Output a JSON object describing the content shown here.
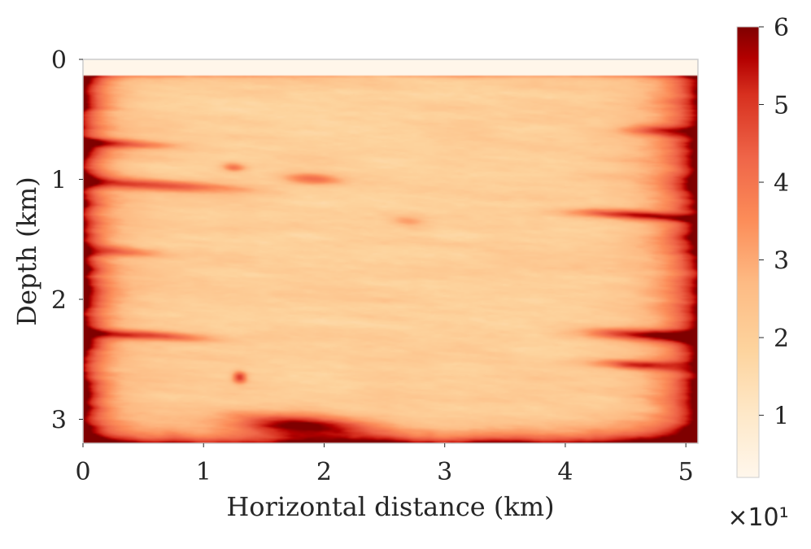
{
  "chart_data": {
    "type": "heatmap",
    "title": "",
    "xlabel": "Horizontal distance (km)",
    "ylabel": "Depth (km)",
    "xlim": [
      0,
      5.1
    ],
    "ylim": [
      3.2,
      0
    ],
    "x_ticks": [
      0,
      1,
      2,
      3,
      4,
      5
    ],
    "x_tick_labels": [
      "0",
      "1",
      "2",
      "3",
      "4",
      "5"
    ],
    "y_ticks": [
      0,
      1,
      2,
      3
    ],
    "y_tick_labels": [
      "0",
      "1",
      "2",
      "3"
    ],
    "colorbar": {
      "colormap": "OrRd",
      "range": [
        0.2,
        6
      ],
      "ticks": [
        1,
        2,
        3,
        4,
        5,
        6
      ],
      "tick_labels": [
        "1",
        "2",
        "3",
        "4",
        "5",
        "6"
      ],
      "multiplier_label": "×10¹"
    },
    "grid": false,
    "water_layer_depth_km": 0.13,
    "field_summary": "Dark red (high, ~6) along the left, right and bottom edges and in thin sub-horizontal streaks; light (low, ~1-2) across the central region; near-zero band at the top (water layer)."
  },
  "colors": {
    "low": "#fff7ec",
    "mid": "#fc8d59",
    "high": "#7f0000",
    "axis_frame": "#cccccc"
  }
}
